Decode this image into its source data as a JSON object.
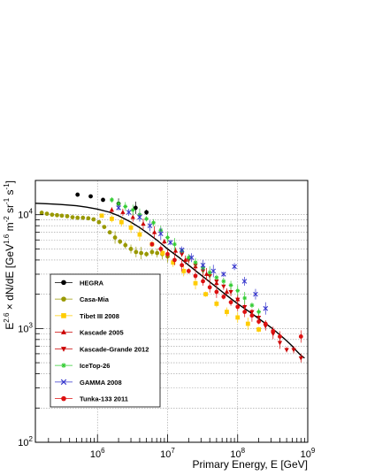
{
  "chart_data": {
    "type": "scatter",
    "title": "",
    "xlabel": "Primary Energy, E [GeV]",
    "ylabel_parts": {
      "prefix": "E",
      "sup1": "2.6",
      "middle": " × dN/dE [GeV",
      "sup2": "1.6",
      "middle2": " m",
      "sup3": "-2",
      "middle3": " sr",
      "sup4": "-1",
      "middle4": " s",
      "sup5": "-1",
      "suffix": "]"
    },
    "x_scale": "log",
    "y_scale": "log",
    "xlim": [
      130000,
      1000000000
    ],
    "ylim": [
      100,
      20000
    ],
    "grid": true,
    "x_tick_labels": [
      {
        "value": 1000000,
        "base": "10",
        "exp": "6"
      },
      {
        "value": 10000000,
        "base": "10",
        "exp": "7"
      },
      {
        "value": 100000000,
        "base": "10",
        "exp": "8"
      },
      {
        "value": 1000000000,
        "base": "10",
        "exp": "9"
      }
    ],
    "y_tick_labels": [
      {
        "value": 100,
        "base": "10",
        "exp": "2"
      },
      {
        "value": 1000,
        "base": "10",
        "exp": "3"
      },
      {
        "value": 10000,
        "base": "10",
        "exp": "4"
      }
    ],
    "legend_placement": "bottom-left",
    "fit_curve": [
      [
        130000,
        12600
      ],
      [
        200000,
        12450
      ],
      [
        300000,
        12300
      ],
      [
        500000,
        12000
      ],
      [
        700000,
        11650
      ],
      [
        1000000,
        11200
      ],
      [
        1500000,
        10500
      ],
      [
        2000000,
        9800
      ],
      [
        3000000,
        8600
      ],
      [
        4000000,
        7700
      ],
      [
        5000000,
        7000
      ],
      [
        7000000,
        6000
      ],
      [
        10000000,
        5000
      ],
      [
        15000000,
        4150
      ],
      [
        20000000,
        3600
      ],
      [
        30000000,
        2950
      ],
      [
        50000000,
        2300
      ],
      [
        70000000,
        1950
      ],
      [
        100000000,
        1650
      ],
      [
        150000000,
        1390
      ],
      [
        200000000,
        1220
      ],
      [
        300000000,
        1020
      ],
      [
        400000000,
        880
      ],
      [
        500000000,
        780
      ],
      [
        600000000,
        700
      ],
      [
        700000000,
        630
      ],
      [
        800000000,
        580
      ],
      [
        900000000,
        550
      ]
    ],
    "series": [
      {
        "name": "HEGRA",
        "color": "#000000",
        "marker": "circle",
        "points": [
          [
            520000,
            15000
          ],
          [
            800000,
            14500
          ],
          [
            1200000,
            13500
          ],
          [
            2000000,
            12500
          ],
          [
            3500000,
            11500
          ],
          [
            5000000,
            10500
          ]
        ]
      },
      {
        "name": "Casa-Mia",
        "color": "#999900",
        "marker": "circle",
        "points": [
          [
            160000,
            10400
          ],
          [
            190000,
            10200
          ],
          [
            225000,
            10000
          ],
          [
            265000,
            9900
          ],
          [
            310000,
            9800
          ],
          [
            370000,
            9700
          ],
          [
            440000,
            9500
          ],
          [
            520000,
            9400
          ],
          [
            620000,
            9400
          ],
          [
            740000,
            9300
          ],
          [
            880000,
            9100
          ],
          [
            1050000,
            8600
          ],
          [
            1250000,
            7800
          ],
          [
            1500000,
            7000
          ],
          [
            1780000,
            6300
          ],
          [
            2100000,
            5800
          ],
          [
            2500000,
            5400
          ],
          [
            3000000,
            5000
          ],
          [
            3550000,
            4700
          ],
          [
            4200000,
            4600
          ],
          [
            5000000,
            4500
          ],
          [
            6000000,
            4700
          ],
          [
            7100000,
            4600
          ],
          [
            8400000,
            4500
          ],
          [
            10000000,
            4300
          ]
        ]
      },
      {
        "name": "Tibet III 2008",
        "color": "#ffcc00",
        "marker": "square",
        "points": [
          [
            1150000,
            9800
          ],
          [
            1600000,
            9200
          ],
          [
            2200000,
            8600
          ],
          [
            3000000,
            7700
          ],
          [
            4000000,
            6700
          ],
          [
            6000000,
            5500
          ],
          [
            8500000,
            4600
          ],
          [
            12000000,
            3800
          ],
          [
            17000000,
            3200
          ],
          [
            25000000,
            2500
          ],
          [
            35000000,
            2000
          ],
          [
            50000000,
            1650
          ],
          [
            70000000,
            1400
          ],
          [
            100000000,
            1250
          ],
          [
            140000000,
            1100
          ],
          [
            200000000,
            980
          ]
        ]
      },
      {
        "name": "Kascade 2005",
        "color": "#cc0000",
        "marker": "triangle-up",
        "points": [
          [
            1600000,
            11000
          ],
          [
            2300000,
            10500
          ],
          [
            3200000,
            9500
          ],
          [
            4500000,
            8300
          ],
          [
            6500000,
            7000
          ],
          [
            9000000,
            5800
          ],
          [
            13000000,
            4800
          ],
          [
            18000000,
            4000
          ],
          [
            25000000,
            3500
          ],
          [
            36000000,
            3000
          ],
          [
            50000000,
            2500
          ],
          [
            70000000,
            2100
          ],
          [
            100000000,
            1800
          ]
        ]
      },
      {
        "name": "Kascade-Grande 2012",
        "color": "#cc0000",
        "marker": "triangle-down",
        "points": [
          [
            16000000,
            4500
          ],
          [
            20000000,
            4000
          ],
          [
            25000000,
            3600
          ],
          [
            32000000,
            3200
          ],
          [
            40000000,
            2900
          ],
          [
            50000000,
            2600
          ],
          [
            63000000,
            2350
          ],
          [
            80000000,
            2100
          ],
          [
            100000000,
            1800
          ],
          [
            126000000,
            1550
          ],
          [
            160000000,
            1400
          ],
          [
            200000000,
            1250
          ],
          [
            250000000,
            1050
          ],
          [
            320000000,
            900
          ],
          [
            400000000,
            750
          ],
          [
            500000000,
            650
          ],
          [
            630000000,
            650
          ],
          [
            800000000,
            550
          ]
        ]
      },
      {
        "name": "IceTop-26",
        "color": "#33cc33",
        "marker": "star",
        "points": [
          [
            1600000,
            13500
          ],
          [
            2000000,
            12500
          ],
          [
            2500000,
            11800
          ],
          [
            3200000,
            11000
          ],
          [
            4000000,
            10000
          ],
          [
            5000000,
            9200
          ],
          [
            6300000,
            8500
          ],
          [
            8000000,
            7300
          ],
          [
            10000000,
            6300
          ],
          [
            12600000,
            5500
          ],
          [
            16000000,
            4800
          ],
          [
            20000000,
            4200
          ],
          [
            25000000,
            3800
          ],
          [
            32000000,
            3400
          ],
          [
            40000000,
            3100
          ],
          [
            50000000,
            2800
          ],
          [
            63000000,
            2600
          ],
          [
            80000000,
            2400
          ],
          [
            100000000,
            2150
          ],
          [
            126000000,
            1850
          ],
          [
            160000000,
            1600
          ],
          [
            200000000,
            1400
          ]
        ]
      },
      {
        "name": "GAMMA 2008",
        "color": "#3333cc",
        "marker": "x",
        "points": [
          [
            2000000,
            11500
          ],
          [
            2800000,
            10500
          ],
          [
            4000000,
            9500
          ],
          [
            5600000,
            8000
          ],
          [
            8000000,
            6800
          ],
          [
            11000000,
            5700
          ],
          [
            16000000,
            4900
          ],
          [
            22000000,
            4200
          ],
          [
            32000000,
            3600
          ],
          [
            45000000,
            3200
          ],
          [
            63000000,
            3000
          ],
          [
            90000000,
            3500
          ],
          [
            125000000,
            2600
          ],
          [
            180000000,
            2000
          ],
          [
            250000000,
            1500
          ]
        ]
      },
      {
        "name": "Tunka-133 2011",
        "color": "#dd1111",
        "marker": "circle",
        "points": [
          [
            6000000,
            5500
          ],
          [
            8000000,
            5000
          ],
          [
            10000000,
            4500
          ],
          [
            12600000,
            4000
          ],
          [
            16000000,
            3600
          ],
          [
            20000000,
            3200
          ],
          [
            25000000,
            2900
          ],
          [
            32000000,
            2600
          ],
          [
            40000000,
            2300
          ],
          [
            50000000,
            2100
          ],
          [
            63000000,
            1900
          ],
          [
            80000000,
            1700
          ],
          [
            100000000,
            1550
          ],
          [
            126000000,
            1400
          ],
          [
            160000000,
            1300
          ],
          [
            200000000,
            1150
          ],
          [
            250000000,
            1100
          ],
          [
            320000000,
            950
          ],
          [
            400000000,
            850
          ],
          [
            800000000,
            850
          ]
        ]
      }
    ]
  }
}
